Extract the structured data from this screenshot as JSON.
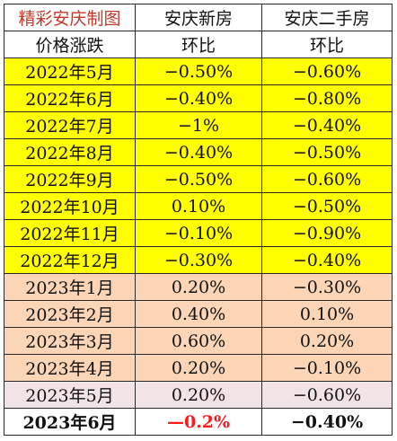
{
  "header": {
    "brand": "精彩安庆制图",
    "col_new": "安庆新房",
    "col_second": "安庆二手房",
    "row_label": "价格涨跌",
    "sub_new": "环比",
    "sub_second": "环比"
  },
  "rows": [
    {
      "month": "2022年5月",
      "new": "−0.50%",
      "second": "−0.60%"
    },
    {
      "month": "2022年6月",
      "new": "−0.40%",
      "second": "−0.80%"
    },
    {
      "month": "2022年7月",
      "new": "−1%",
      "second": "−0.40%"
    },
    {
      "month": "2022年8月",
      "new": "−0.40%",
      "second": "−0.50%"
    },
    {
      "month": "2022年9月",
      "new": "−0.50%",
      "second": "−0.60%"
    },
    {
      "month": "2022年10月",
      "new": "0.10%",
      "second": "−0.50%"
    },
    {
      "month": "2022年11月",
      "new": "−0.10%",
      "second": "−0.90%"
    },
    {
      "month": "2022年12月",
      "new": "−0.30%",
      "second": "−0.40%"
    },
    {
      "month": "2023年1月",
      "new": "0.20%",
      "second": "−0.30%"
    },
    {
      "month": "2023年2月",
      "new": "0.40%",
      "second": "0.10%"
    },
    {
      "month": "2023年3月",
      "new": "0.60%",
      "second": "0.20%"
    },
    {
      "month": "2023年4月",
      "new": "0.20%",
      "second": "−0.10%"
    },
    {
      "month": "2023年5月",
      "new": "0.20%",
      "second": "−0.60%"
    },
    {
      "month": "2023年6月",
      "new": "—0.2%",
      "second": "−0.40%"
    }
  ],
  "colors": {
    "yellow_rows": "#ffff00",
    "peach_rows": "#fbd5b5",
    "lilac_row": "#f2e3e6",
    "brand_text": "#c0392b",
    "highlight_negative": "#ff1a1a"
  }
}
